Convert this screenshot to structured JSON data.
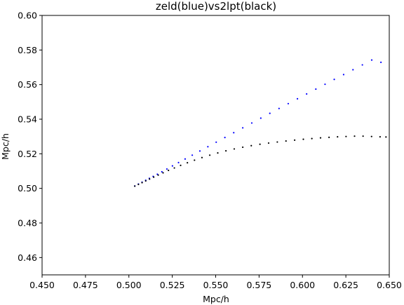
{
  "chart_data": {
    "type": "scatter",
    "title": "zeld(blue)vs2lpt(black)",
    "xlabel": "Mpc/h",
    "ylabel": "Mpc/h",
    "xlim": [
      0.45,
      0.65
    ],
    "ylim": [
      0.45,
      0.6
    ],
    "x_ticks": [
      0.45,
      0.475,
      0.5,
      0.525,
      0.55,
      0.575,
      0.6,
      0.625,
      0.65
    ],
    "x_tick_labels": [
      "0.450",
      "0.475",
      "0.500",
      "0.525",
      "0.550",
      "0.575",
      "0.600",
      "0.625",
      "0.650"
    ],
    "y_ticks": [
      0.46,
      0.48,
      0.5,
      0.52,
      0.54,
      0.56,
      0.58,
      0.6
    ],
    "y_tick_labels": [
      "0.46",
      "0.48",
      "0.50",
      "0.52",
      "0.54",
      "0.56",
      "0.58",
      "0.60"
    ],
    "grid": false,
    "legend": "none",
    "series": [
      {
        "color": "#0000ff",
        "x": [
          0.5034,
          0.5055,
          0.5076,
          0.5097,
          0.5118,
          0.514,
          0.5164,
          0.519,
          0.5219,
          0.5251,
          0.5286,
          0.5324,
          0.5365,
          0.5409,
          0.5455,
          0.5503,
          0.5553,
          0.5604,
          0.5656,
          0.5708,
          0.576,
          0.5812,
          0.5865,
          0.5918,
          0.5971,
          0.6024,
          0.6077,
          0.613,
          0.6183,
          0.6237,
          0.6291,
          0.6345,
          0.6399,
          0.6452
        ],
        "y": [
          0.5014,
          0.5025,
          0.5036,
          0.5047,
          0.5058,
          0.5069,
          0.5082,
          0.5096,
          0.5112,
          0.513,
          0.5149,
          0.517,
          0.5192,
          0.5216,
          0.5241,
          0.5267,
          0.5294,
          0.5322,
          0.535,
          0.5378,
          0.5406,
          0.5434,
          0.5462,
          0.549,
          0.5518,
          0.5546,
          0.5574,
          0.5602,
          0.563,
          0.5658,
          0.5686,
          0.5714,
          0.5742,
          0.5729
        ]
      },
      {
        "color": "#000000",
        "x": [
          0.5034,
          0.5055,
          0.5076,
          0.5097,
          0.5119,
          0.5143,
          0.5169,
          0.5197,
          0.5228,
          0.5262,
          0.5298,
          0.5337,
          0.5378,
          0.5421,
          0.5466,
          0.5512,
          0.5559,
          0.5607,
          0.5656,
          0.5705,
          0.5755,
          0.5805,
          0.5855,
          0.5905,
          0.5955,
          0.6005,
          0.6054,
          0.6104,
          0.6153,
          0.6202,
          0.6251,
          0.63,
          0.6349,
          0.6398,
          0.6447,
          0.6481
        ],
        "y": [
          0.5013,
          0.5023,
          0.5033,
          0.5043,
          0.5054,
          0.5065,
          0.5077,
          0.509,
          0.5104,
          0.5118,
          0.5133,
          0.5148,
          0.5163,
          0.5178,
          0.5192,
          0.5205,
          0.5217,
          0.5228,
          0.5238,
          0.5247,
          0.5255,
          0.5262,
          0.5268,
          0.5274,
          0.5279,
          0.5284,
          0.5288,
          0.5292,
          0.5295,
          0.5298,
          0.53,
          0.5302,
          0.5302,
          0.53,
          0.5298,
          0.5297
        ]
      }
    ]
  }
}
